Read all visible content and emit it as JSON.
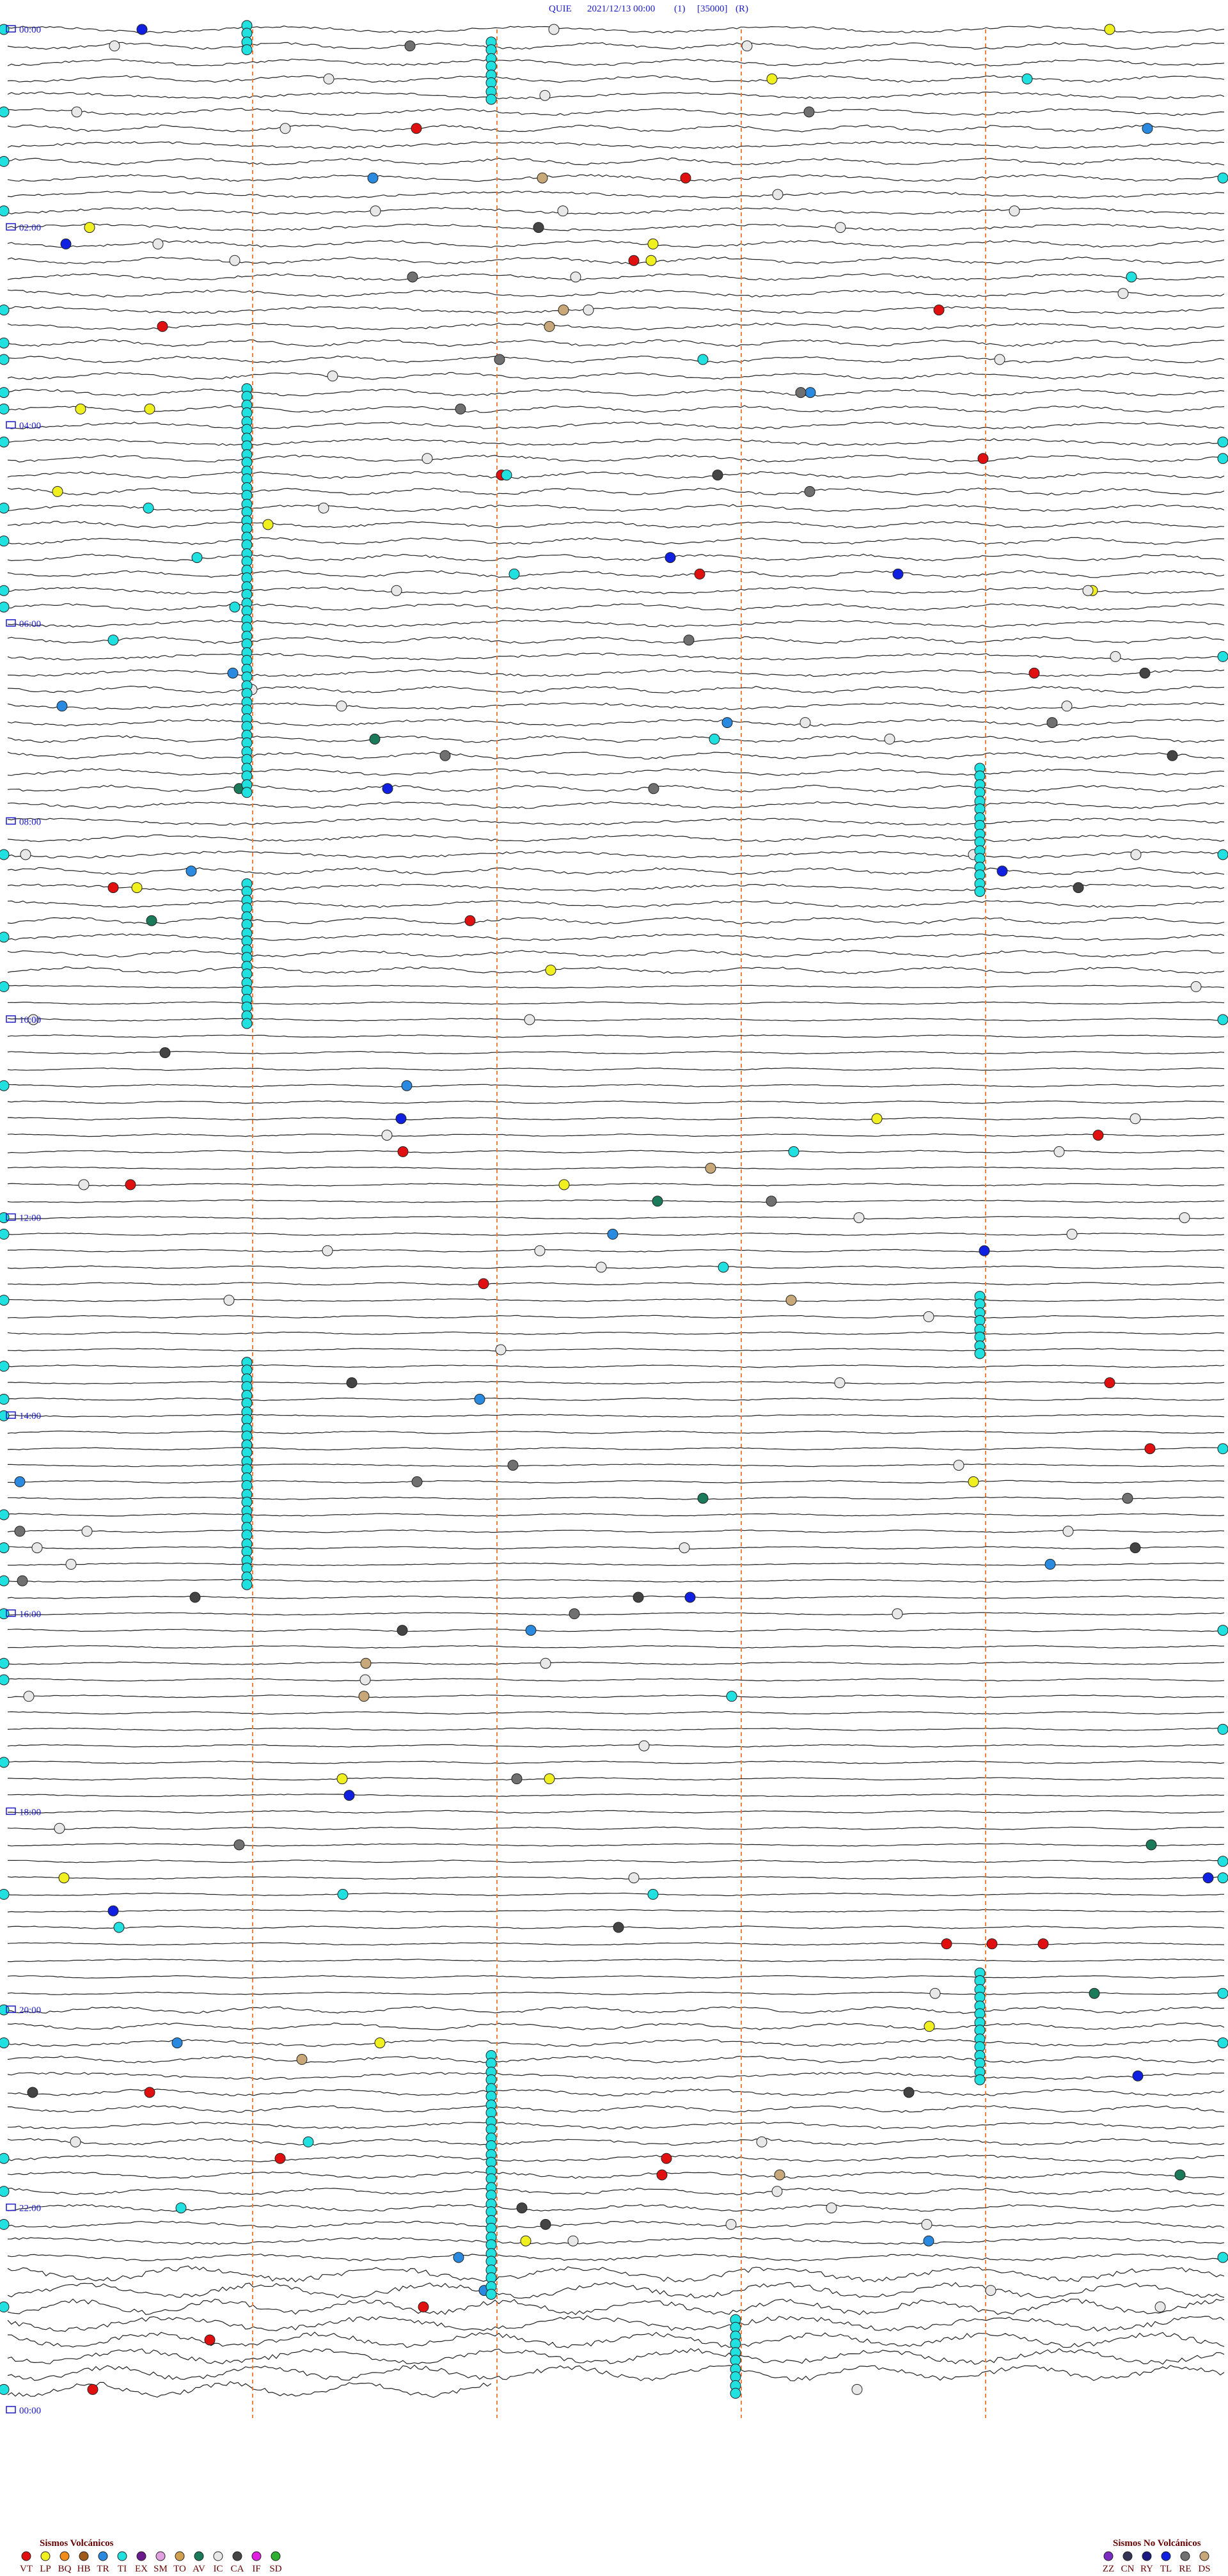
{
  "header": {
    "station": "QUIE",
    "date": "2021/12/13 00:00",
    "channel": "(1)",
    "scale": "[35000]",
    "mode": "(R)"
  },
  "time_labels": [
    "00:00",
    "02:00",
    "04:00",
    "06:00",
    "08:00",
    "10:00",
    "12:00",
    "14:00",
    "16:00",
    "18:00",
    "20:00",
    "22:00",
    "00:00"
  ],
  "legend_volcanic": {
    "title": "Sismos Volcánicos",
    "items": [
      {
        "code": "VT",
        "color": "#e01010"
      },
      {
        "code": "LP",
        "color": "#f0f020"
      },
      {
        "code": "BQ",
        "color": "#f08c1a"
      },
      {
        "code": "HB",
        "color": "#a05a1a"
      },
      {
        "code": "TR",
        "color": "#2a8ae0"
      },
      {
        "code": "TI",
        "color": "#20e0e0"
      },
      {
        "code": "EX",
        "color": "#6a1a8a"
      },
      {
        "code": "SM",
        "color": "#e0a0e0"
      },
      {
        "code": "TO",
        "color": "#d0a050"
      },
      {
        "code": "AV",
        "color": "#1a7a5a"
      },
      {
        "code": "IC",
        "color": "#e8e8e8"
      },
      {
        "code": "CA",
        "color": "#444444"
      },
      {
        "code": "IF",
        "color": "#e020e0"
      },
      {
        "code": "SD",
        "color": "#30b030"
      }
    ]
  },
  "legend_nonvolcanic": {
    "title": "Sismos No Volcánicos",
    "items": [
      {
        "code": "ZZ",
        "color": "#7a2ac0"
      },
      {
        "code": "CN",
        "color": "#333355"
      },
      {
        "code": "RY",
        "color": "#1a1a80"
      },
      {
        "code": "TL",
        "color": "#1020e0"
      },
      {
        "code": "RE",
        "color": "#707070"
      },
      {
        "code": "DS",
        "color": "#c8a878"
      }
    ]
  }
}
